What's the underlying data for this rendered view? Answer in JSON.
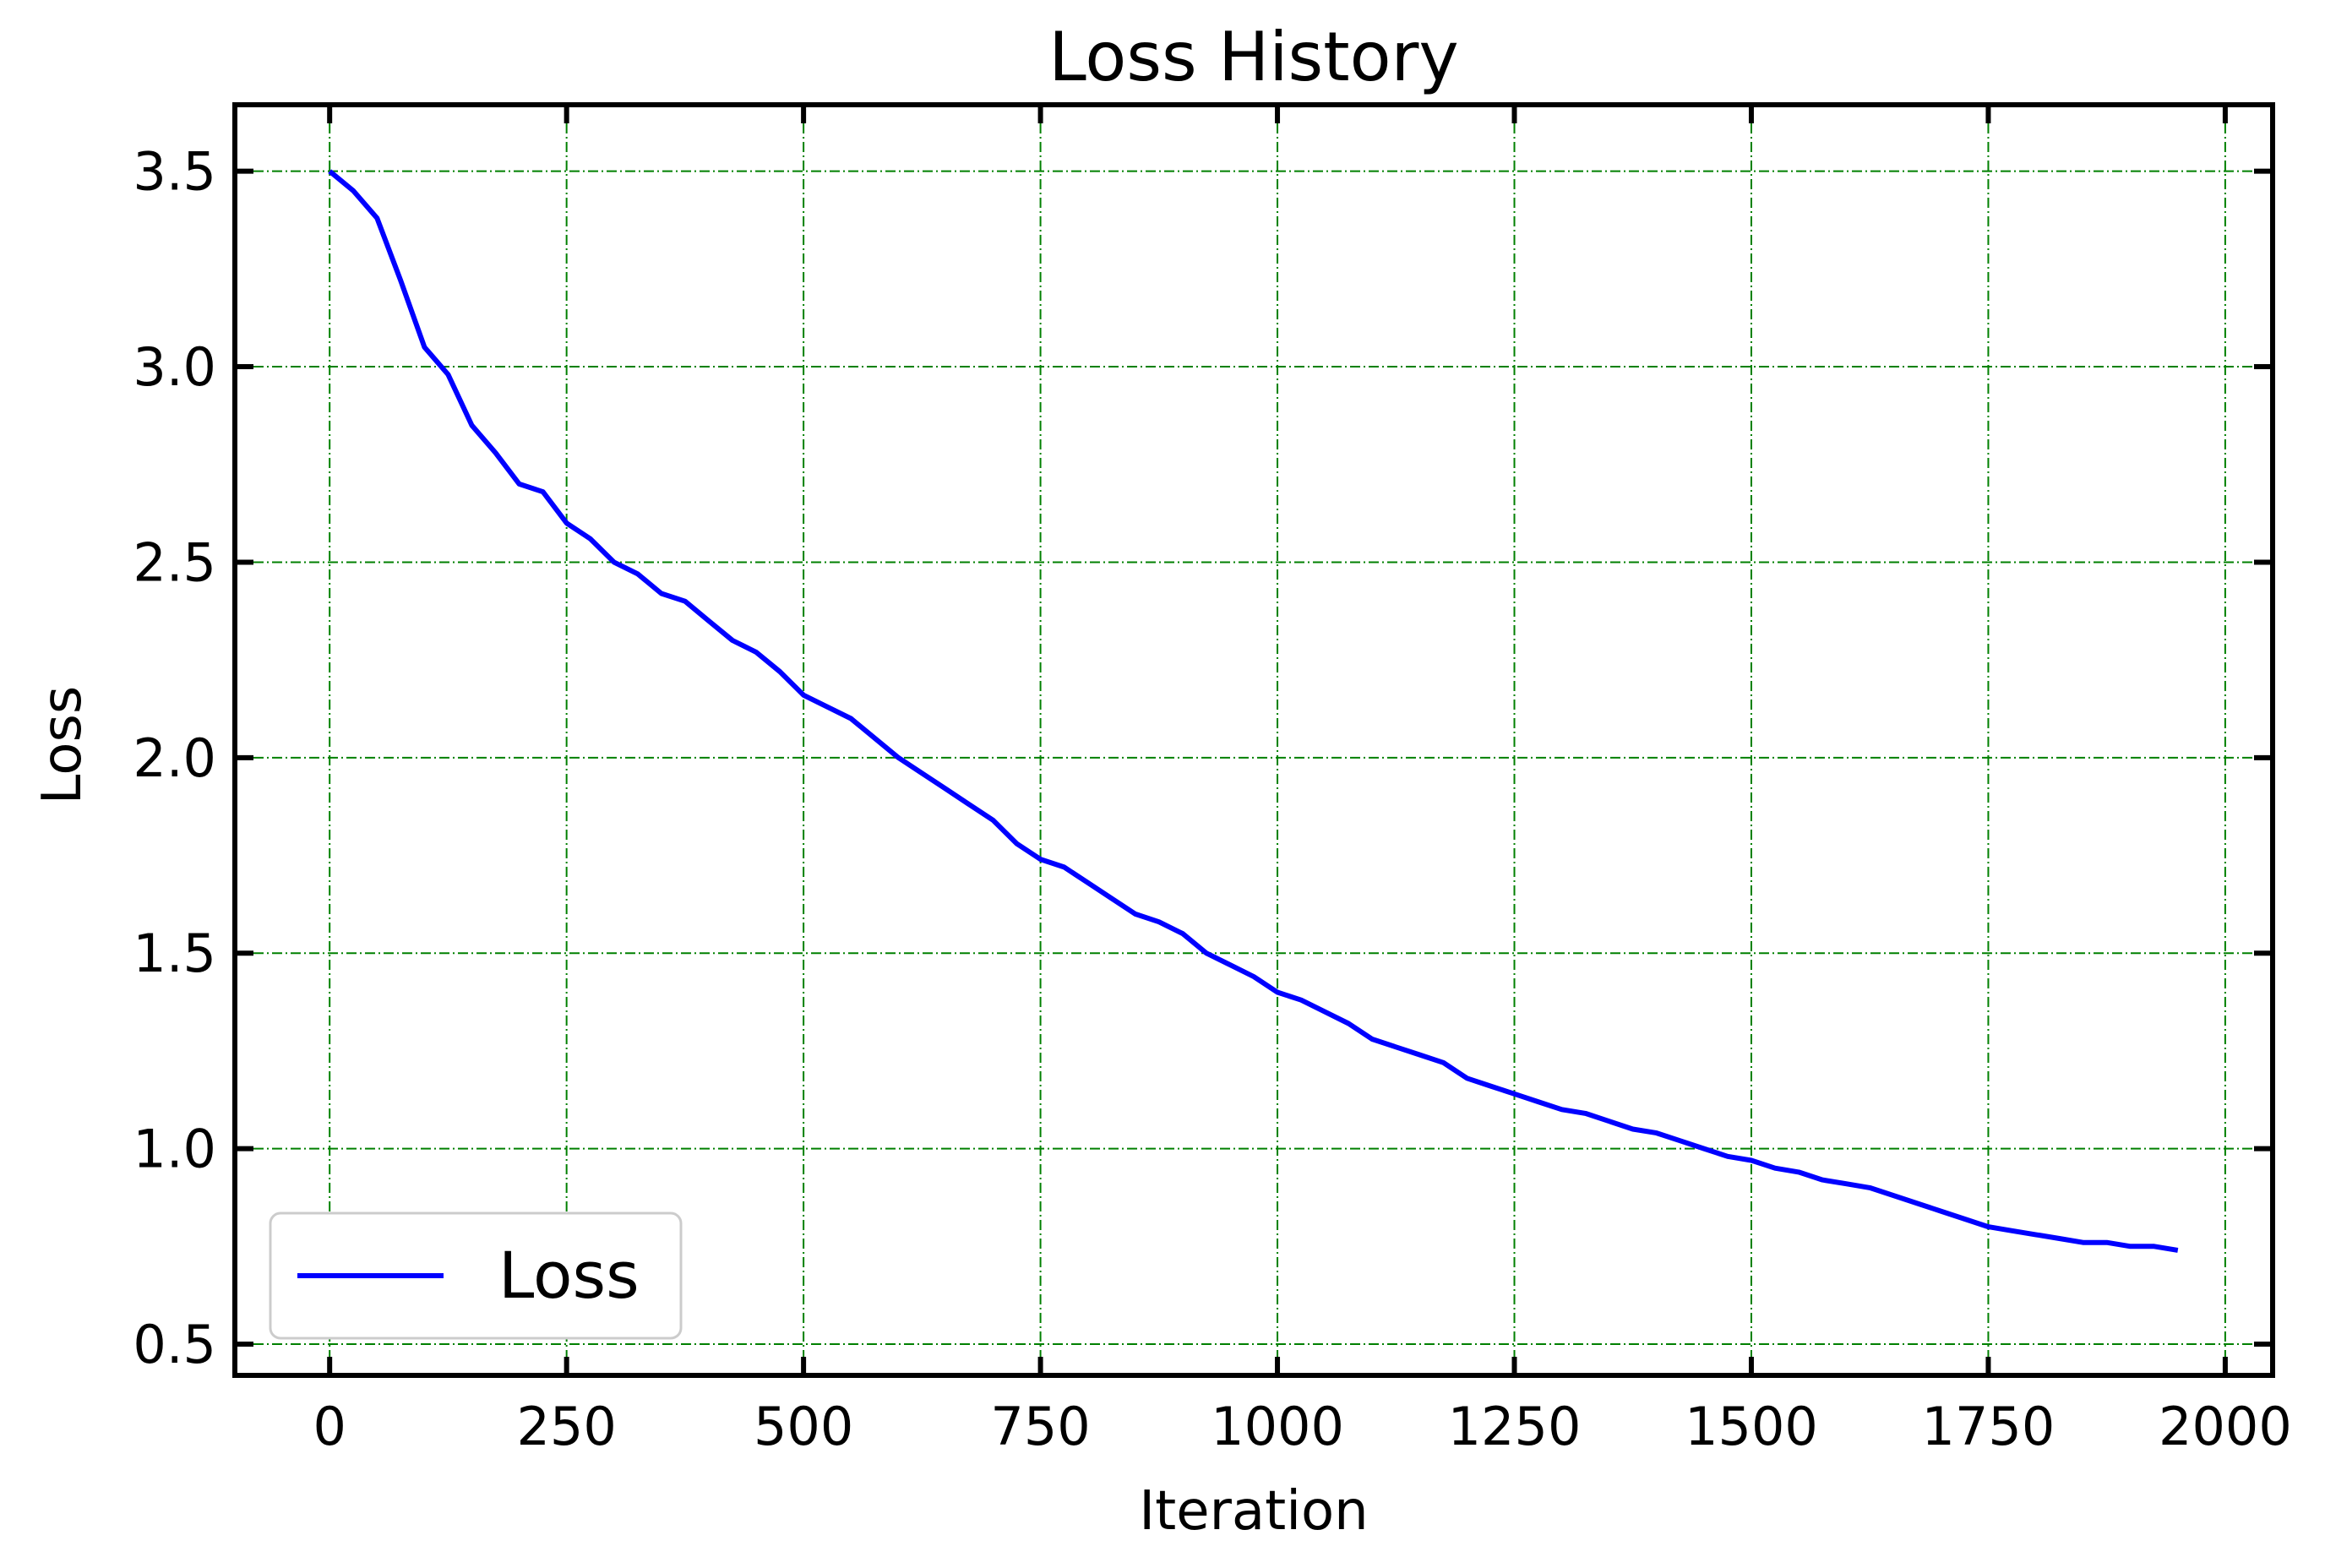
{
  "chart_data": {
    "type": "line",
    "title": "Loss History",
    "xlabel": "Iteration",
    "ylabel": "Loss",
    "xlim": [
      -100,
      2050
    ],
    "ylim": [
      0.42,
      3.67
    ],
    "xticks": [
      0,
      250,
      500,
      750,
      1000,
      1250,
      1500,
      1750,
      2000
    ],
    "yticks": [
      0.5,
      1.0,
      1.5,
      2.0,
      2.5,
      3.0,
      3.5
    ],
    "xtick_labels": [
      "0",
      "250",
      "500",
      "750",
      "1000",
      "1250",
      "1500",
      "1750",
      "2000"
    ],
    "ytick_labels": [
      "0.5",
      "1.0",
      "1.5",
      "2.0",
      "2.5",
      "3.0",
      "3.5"
    ],
    "grid": true,
    "grid_color": "#008000",
    "legend_position": "lower-left",
    "series": [
      {
        "name": "Loss",
        "color": "#0000ff",
        "x": [
          0,
          25,
          50,
          75,
          100,
          125,
          150,
          175,
          200,
          225,
          250,
          275,
          300,
          325,
          350,
          375,
          400,
          425,
          450,
          475,
          500,
          525,
          550,
          575,
          600,
          625,
          650,
          675,
          700,
          725,
          750,
          775,
          800,
          825,
          850,
          875,
          900,
          925,
          950,
          975,
          1000,
          1025,
          1050,
          1075,
          1100,
          1125,
          1150,
          1175,
          1200,
          1225,
          1250,
          1275,
          1300,
          1325,
          1350,
          1375,
          1400,
          1425,
          1450,
          1475,
          1500,
          1525,
          1550,
          1575,
          1600,
          1625,
          1650,
          1675,
          1700,
          1725,
          1750,
          1775,
          1800,
          1825,
          1850,
          1875,
          1900,
          1925,
          1950
        ],
        "values": [
          3.5,
          3.45,
          3.38,
          3.22,
          3.05,
          2.98,
          2.85,
          2.78,
          2.7,
          2.68,
          2.6,
          2.56,
          2.5,
          2.47,
          2.42,
          2.4,
          2.35,
          2.3,
          2.27,
          2.22,
          2.16,
          2.13,
          2.1,
          2.05,
          2.0,
          1.96,
          1.92,
          1.88,
          1.84,
          1.78,
          1.74,
          1.72,
          1.68,
          1.64,
          1.6,
          1.58,
          1.55,
          1.5,
          1.47,
          1.44,
          1.4,
          1.38,
          1.35,
          1.32,
          1.28,
          1.26,
          1.24,
          1.22,
          1.18,
          1.16,
          1.14,
          1.12,
          1.1,
          1.09,
          1.07,
          1.05,
          1.04,
          1.02,
          1.0,
          0.98,
          0.97,
          0.95,
          0.94,
          0.92,
          0.91,
          0.9,
          0.88,
          0.86,
          0.84,
          0.82,
          0.8,
          0.79,
          0.78,
          0.77,
          0.76,
          0.76,
          0.75,
          0.75,
          0.74
        ]
      }
    ]
  }
}
